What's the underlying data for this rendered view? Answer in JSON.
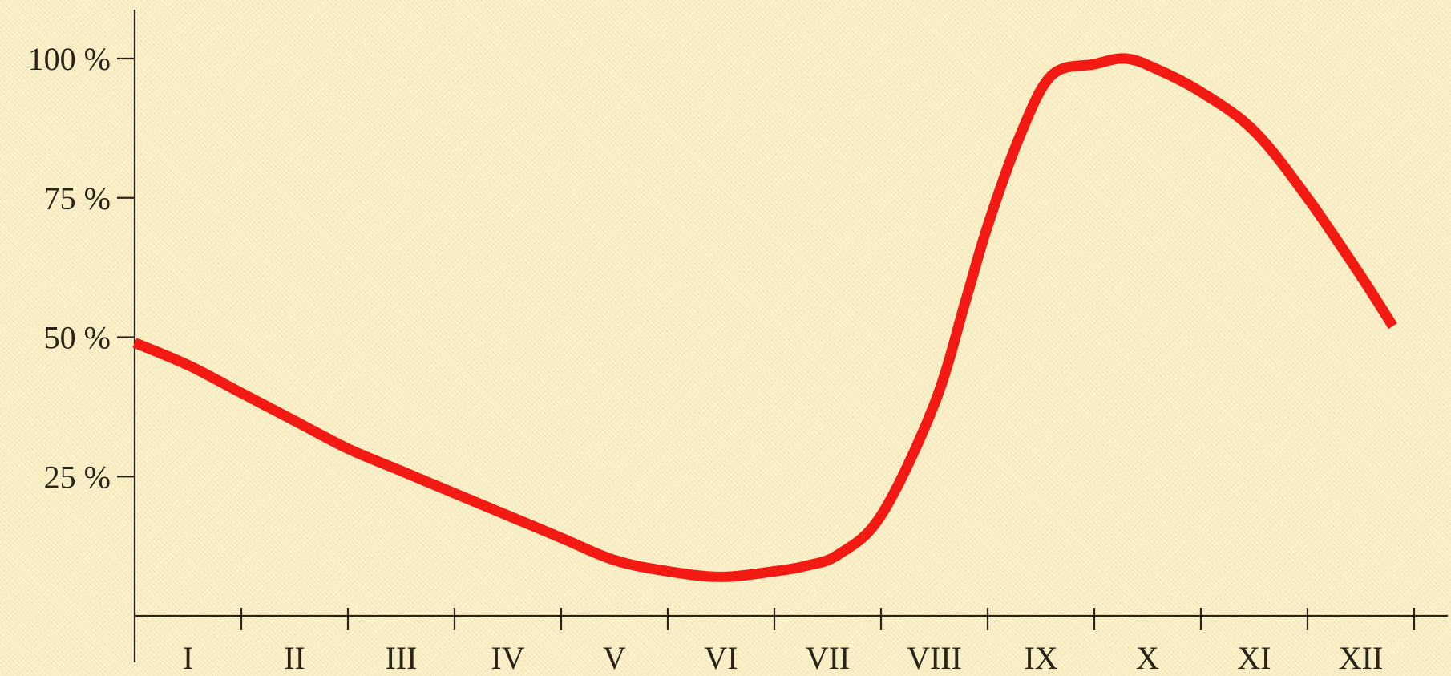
{
  "chart_data": {
    "type": "line",
    "title": "",
    "xlabel": "",
    "ylabel": "",
    "categories": [
      "I",
      "II",
      "III",
      "IV",
      "V",
      "VI",
      "VII",
      "VIII",
      "IX",
      "X",
      "XI",
      "XII"
    ],
    "y_ticks": [
      {
        "value": 25,
        "label": "25 %"
      },
      {
        "value": 50,
        "label": "50 %"
      },
      {
        "value": 75,
        "label": "75 %"
      },
      {
        "value": 100,
        "label": "100 %"
      }
    ],
    "ylim": [
      0,
      105
    ],
    "xlim": [
      0,
      12.6
    ],
    "grid": false,
    "legend": "none",
    "series": [
      {
        "color": "#f21a12",
        "x": [
          0.0,
          0.5,
          1.0,
          1.5,
          2.0,
          2.5,
          3.0,
          3.5,
          4.0,
          4.5,
          5.0,
          5.5,
          6.0,
          6.3,
          6.6,
          7.0,
          7.5,
          7.8,
          8.0,
          8.3,
          8.6,
          9.0,
          9.3,
          9.6,
          10.0,
          10.5,
          11.0,
          11.5,
          11.8
        ],
        "values": [
          49,
          45,
          40,
          35,
          30,
          26,
          22,
          18,
          14,
          10,
          8,
          7,
          8,
          9,
          11,
          18,
          38,
          57,
          70,
          86,
          97,
          99,
          100,
          98,
          94,
          87,
          75,
          61,
          52
        ]
      }
    ]
  }
}
